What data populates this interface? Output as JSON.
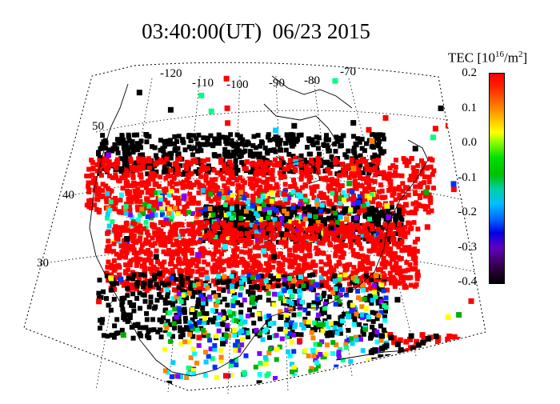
{
  "title": "03:40:00(UT)  06/23 2015",
  "colorbar": {
    "label_prefix": "TEC [10",
    "label_exp": "16",
    "label_mid": "/m",
    "label_exp2": "2",
    "label_suffix": "]",
    "ticks": [
      "0.2",
      "0.1",
      "0.0",
      "-0.1",
      "-0.2",
      "-0.3",
      "-0.4"
    ],
    "min": -0.42,
    "max": 0.2
  },
  "map": {
    "projection": "conic",
    "longitude_labels": [
      "-120",
      "-110",
      "-100",
      "-90",
      "-80",
      "-70"
    ],
    "latitude_labels": [
      "50",
      "40",
      "30"
    ]
  },
  "colors": {
    "high": "#ff0000",
    "low": "#000000",
    "mid": "#00c000"
  }
}
